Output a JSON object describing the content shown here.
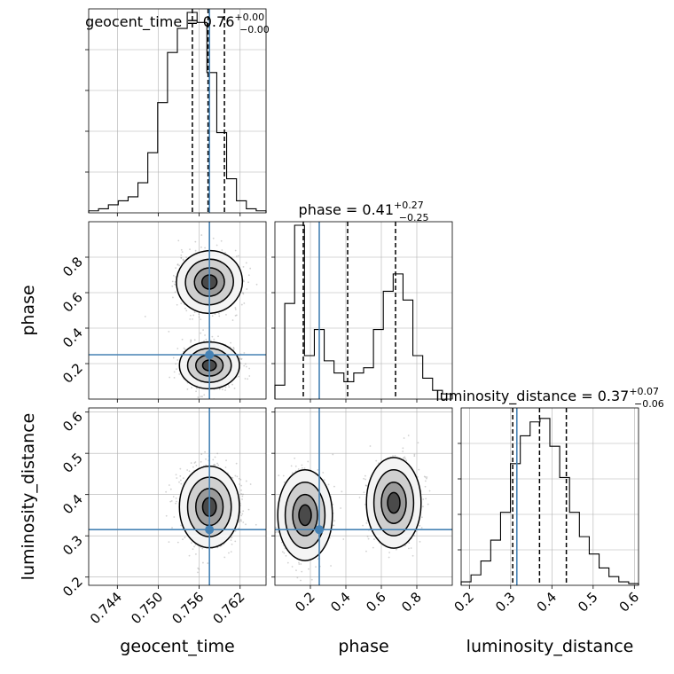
{
  "chart_data": {
    "type": "corner",
    "parameters": [
      "geocent_time",
      "phase",
      "luminosity_distance"
    ],
    "truth": {
      "geocent_time": 0.7575,
      "phase": 0.25,
      "luminosity_distance": 0.315
    },
    "truth_color": "#4682b4",
    "ranges": {
      "geocent_time": [
        0.7398,
        0.7658
      ],
      "phase": [
        0.0,
        1.0
      ],
      "luminosity_distance": [
        0.18,
        0.61
      ]
    },
    "titles": {
      "geocent_time": {
        "name": "geocent_time",
        "median": "0.76",
        "plus": "+0.00",
        "minus": "−0.00"
      },
      "phase": {
        "name": "phase",
        "median": "0.41",
        "plus": "+0.27",
        "minus": "−0.25"
      },
      "luminosity_distance": {
        "name": "luminosity_distance",
        "median": "0.37",
        "plus": "+0.07",
        "minus": "−0.06"
      }
    },
    "quantiles": {
      "geocent_time": [
        0.755,
        0.7573,
        0.7597
      ],
      "phase": [
        0.16,
        0.41,
        0.68
      ],
      "luminosity_distance": [
        0.305,
        0.37,
        0.435
      ]
    },
    "ticks": {
      "geocent_time": {
        "values": [
          0.744,
          0.75,
          0.756,
          0.762
        ],
        "labels": [
          "0.744",
          "0.750",
          "0.756",
          "0.762"
        ]
      },
      "phase": {
        "values": [
          0.2,
          0.4,
          0.6,
          0.8
        ],
        "labels": [
          "0.2",
          "0.4",
          "0.6",
          "0.8"
        ]
      },
      "luminosity_distance": {
        "values": [
          0.2,
          0.3,
          0.4,
          0.5,
          0.6
        ],
        "labels": [
          "0.2",
          "0.3",
          "0.4",
          "0.5",
          "0.6"
        ]
      }
    },
    "histograms": {
      "geocent_time": [
        0.01,
        0.02,
        0.04,
        0.06,
        0.08,
        0.15,
        0.3,
        0.55,
        0.8,
        0.92,
        1.0,
        0.95,
        0.7,
        0.4,
        0.17,
        0.06,
        0.02,
        0.01
      ],
      "phase": [
        0.08,
        0.55,
        1.0,
        0.25,
        0.4,
        0.22,
        0.15,
        0.1,
        0.15,
        0.18,
        0.4,
        0.62,
        0.72,
        0.57,
        0.25,
        0.12,
        0.05,
        0.03
      ],
      "luminosity_distance": [
        0.02,
        0.06,
        0.14,
        0.26,
        0.42,
        0.7,
        0.86,
        0.94,
        0.96,
        0.8,
        0.62,
        0.42,
        0.28,
        0.18,
        0.1,
        0.05,
        0.02,
        0.01
      ]
    },
    "grid": true
  }
}
